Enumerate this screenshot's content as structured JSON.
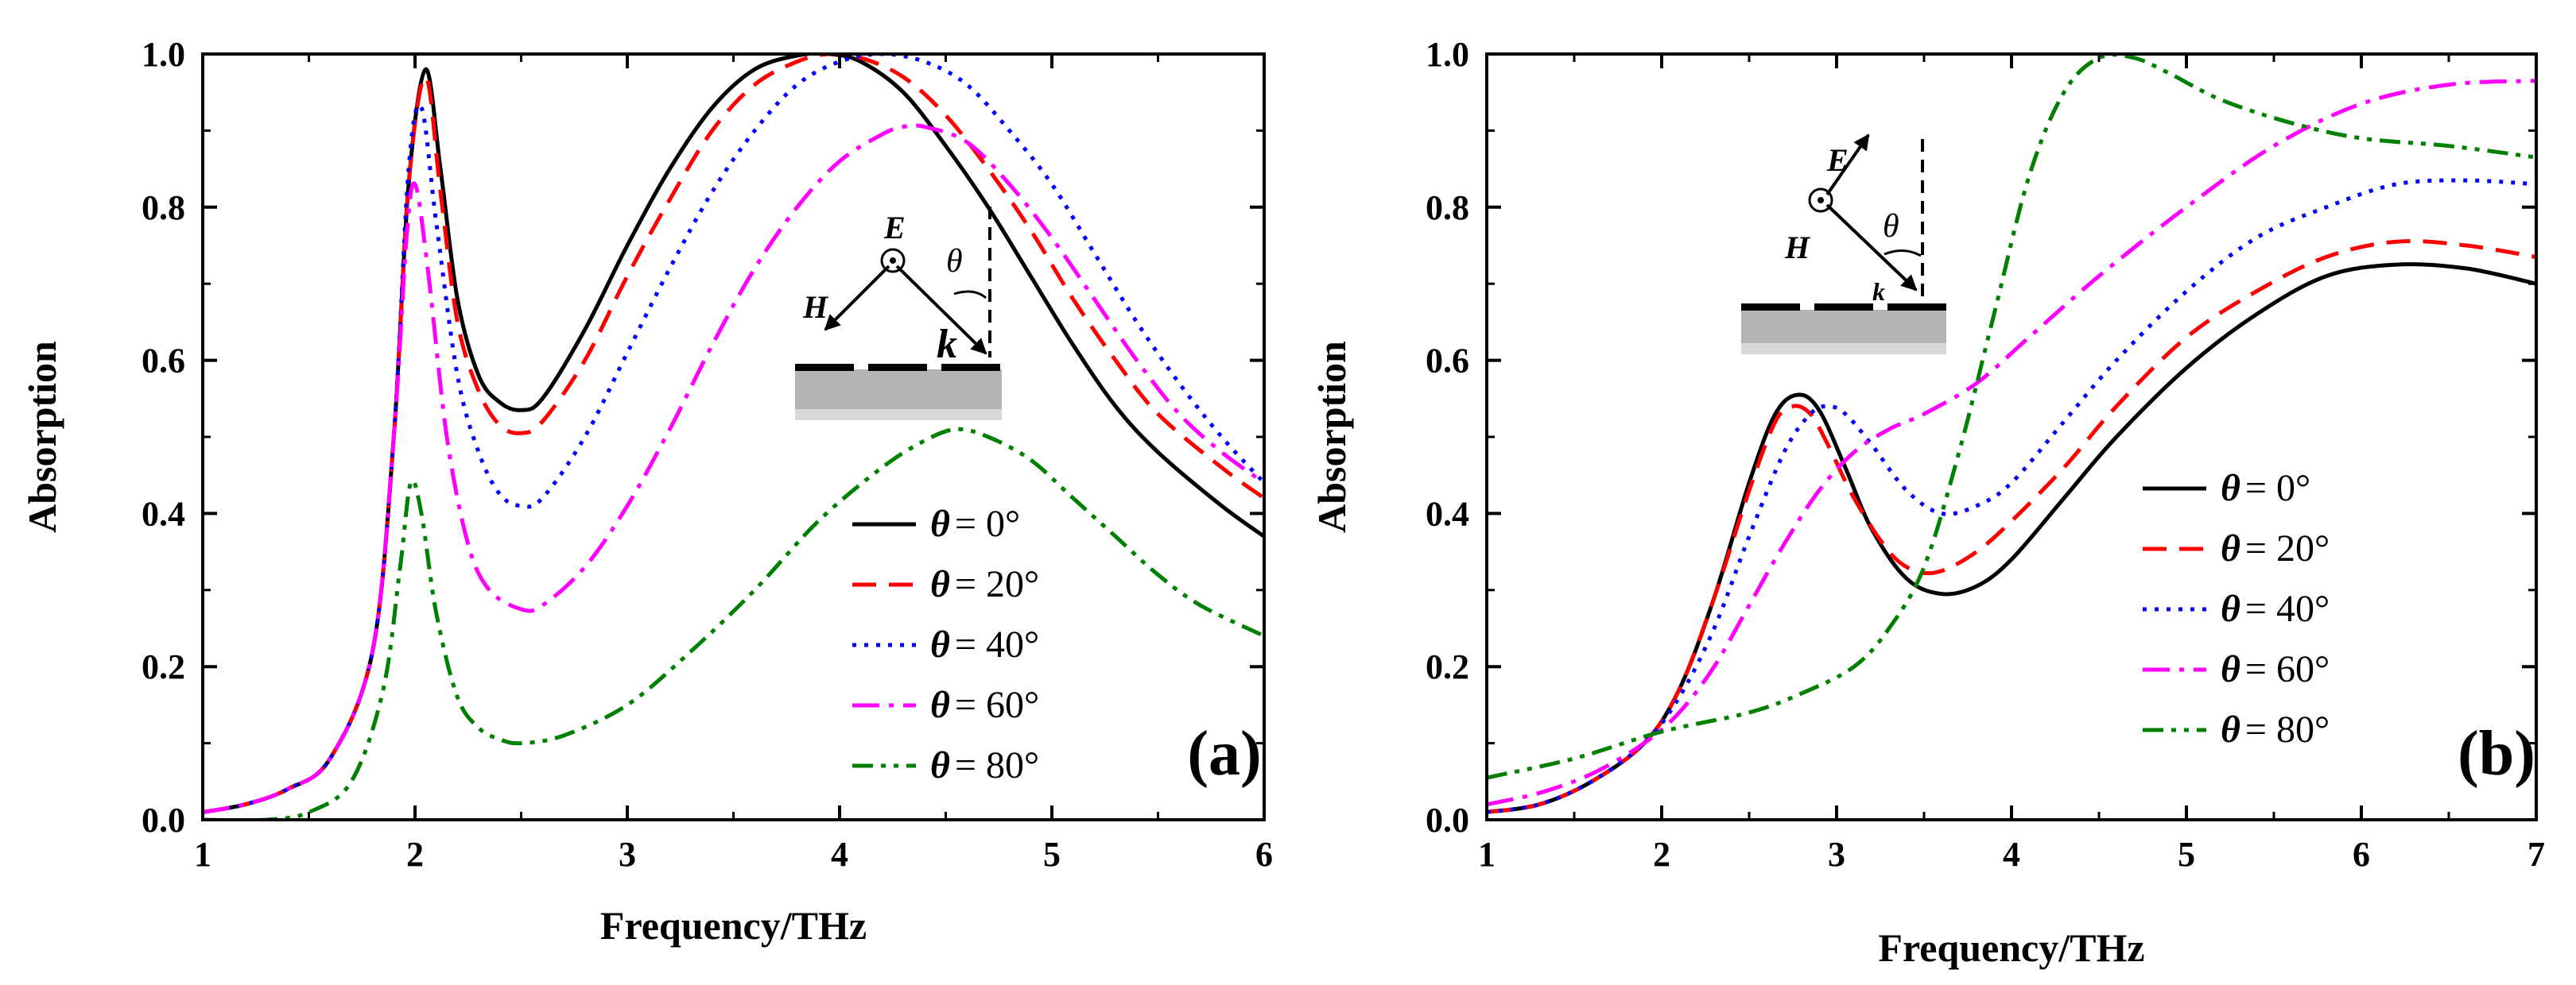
{
  "chart_data": [
    {
      "type": "line",
      "panel_label": "(a)",
      "xlabel": "Frequency/THz",
      "ylabel": "Absorption",
      "xlim": [
        1,
        6
      ],
      "ylim": [
        0,
        1
      ],
      "xticks": [
        "1",
        "2",
        "3",
        "4",
        "5",
        "6"
      ],
      "yticks": [
        "0.0",
        "0.2",
        "0.4",
        "0.6",
        "0.8",
        "1.0"
      ],
      "legend_position": "lower-right",
      "inset_labels": {
        "E": "E",
        "H": "H",
        "k": "k",
        "theta": "θ"
      },
      "series": [
        {
          "name": "θ = 0°",
          "theta": "θ",
          "value": "= 0°",
          "color": "#000000",
          "dash": "solid",
          "x": [
            1.0,
            1.2,
            1.4,
            1.6,
            1.8,
            1.9,
            1.97,
            2.05,
            2.12,
            2.2,
            2.3,
            2.4,
            2.5,
            2.6,
            2.8,
            3.0,
            3.2,
            3.4,
            3.6,
            3.8,
            3.95,
            4.1,
            4.3,
            4.5,
            4.7,
            4.9,
            5.1,
            5.3,
            5.5,
            5.8,
            6.0
          ],
          "y": [
            0.01,
            0.02,
            0.04,
            0.08,
            0.22,
            0.5,
            0.83,
            0.98,
            0.85,
            0.68,
            0.58,
            0.545,
            0.535,
            0.55,
            0.64,
            0.75,
            0.85,
            0.93,
            0.98,
            0.998,
            1.0,
            0.99,
            0.95,
            0.88,
            0.8,
            0.71,
            0.62,
            0.54,
            0.48,
            0.41,
            0.37
          ]
        },
        {
          "name": "θ = 20°",
          "theta": "θ",
          "value": "= 20°",
          "color": "#ff0000",
          "dash": "dashed",
          "x": [
            1.0,
            1.2,
            1.4,
            1.6,
            1.8,
            1.9,
            1.97,
            2.05,
            2.12,
            2.2,
            2.3,
            2.4,
            2.5,
            2.6,
            2.8,
            3.0,
            3.2,
            3.4,
            3.6,
            3.8,
            3.95,
            4.1,
            4.3,
            4.5,
            4.7,
            4.9,
            5.1,
            5.3,
            5.5,
            5.8,
            6.0
          ],
          "y": [
            0.01,
            0.02,
            0.04,
            0.08,
            0.22,
            0.5,
            0.83,
            0.97,
            0.82,
            0.65,
            0.56,
            0.515,
            0.505,
            0.52,
            0.6,
            0.71,
            0.81,
            0.9,
            0.96,
            0.99,
            1.0,
            0.995,
            0.97,
            0.92,
            0.85,
            0.77,
            0.68,
            0.6,
            0.53,
            0.46,
            0.42
          ]
        },
        {
          "name": "θ = 40°",
          "theta": "θ",
          "value": "= 40°",
          "color": "#0000ff",
          "dash": "dotted",
          "x": [
            1.0,
            1.2,
            1.4,
            1.6,
            1.8,
            1.9,
            1.97,
            2.03,
            2.1,
            2.2,
            2.3,
            2.4,
            2.5,
            2.6,
            2.8,
            3.0,
            3.2,
            3.4,
            3.6,
            3.8,
            4.0,
            4.2,
            4.4,
            4.6,
            4.8,
            5.0,
            5.2,
            5.4,
            5.6,
            5.8,
            6.0
          ],
          "y": [
            0.01,
            0.02,
            0.04,
            0.08,
            0.22,
            0.5,
            0.85,
            0.93,
            0.78,
            0.58,
            0.48,
            0.425,
            0.41,
            0.42,
            0.5,
            0.61,
            0.72,
            0.82,
            0.9,
            0.96,
            0.99,
            1.0,
            0.99,
            0.96,
            0.9,
            0.83,
            0.74,
            0.65,
            0.57,
            0.5,
            0.44
          ]
        },
        {
          "name": "θ = 60°",
          "theta": "θ",
          "value": "= 60°",
          "color": "#ff00ff",
          "dash": "dashdot",
          "x": [
            1.0,
            1.2,
            1.4,
            1.6,
            1.8,
            1.9,
            1.96,
            2.0,
            2.06,
            2.15,
            2.25,
            2.35,
            2.5,
            2.6,
            2.8,
            3.0,
            3.2,
            3.4,
            3.6,
            3.8,
            4.0,
            4.2,
            4.3,
            4.4,
            4.6,
            4.8,
            5.0,
            5.2,
            5.4,
            5.6,
            5.8,
            6.0
          ],
          "y": [
            0.01,
            0.02,
            0.04,
            0.08,
            0.22,
            0.5,
            0.76,
            0.83,
            0.72,
            0.5,
            0.36,
            0.3,
            0.275,
            0.28,
            0.33,
            0.41,
            0.51,
            0.62,
            0.72,
            0.8,
            0.86,
            0.895,
            0.905,
            0.905,
            0.885,
            0.83,
            0.76,
            0.68,
            0.6,
            0.53,
            0.48,
            0.44
          ]
        },
        {
          "name": "θ = 80°",
          "theta": "θ",
          "value": "= 80°",
          "color": "#008000",
          "dash": "dashdotdot",
          "x": [
            1.0,
            1.3,
            1.5,
            1.7,
            1.85,
            1.93,
            1.98,
            2.03,
            2.1,
            2.2,
            2.3,
            2.4,
            2.5,
            2.7,
            3.0,
            3.3,
            3.6,
            3.9,
            4.2,
            4.4,
            4.55,
            4.7,
            4.9,
            5.1,
            5.3,
            5.5,
            5.7,
            6.0
          ],
          "y": [
            0.0,
            0.0,
            0.01,
            0.05,
            0.17,
            0.33,
            0.44,
            0.4,
            0.27,
            0.16,
            0.12,
            0.105,
            0.1,
            0.11,
            0.15,
            0.22,
            0.3,
            0.39,
            0.46,
            0.495,
            0.51,
            0.5,
            0.47,
            0.42,
            0.37,
            0.32,
            0.28,
            0.24
          ]
        }
      ]
    },
    {
      "type": "line",
      "panel_label": "(b)",
      "xlabel": "Frequency/THz",
      "ylabel": "Absorption",
      "xlim": [
        1,
        7
      ],
      "ylim": [
        0,
        1
      ],
      "xticks": [
        "1",
        "2",
        "3",
        "4",
        "5",
        "6",
        "7"
      ],
      "yticks": [
        "0.0",
        "0.2",
        "0.4",
        "0.6",
        "0.8",
        "1.0"
      ],
      "legend_position": "lower-right",
      "inset_labels": {
        "E": "E",
        "H": "H",
        "k": "k",
        "theta": "θ"
      },
      "series": [
        {
          "name": "θ = 0°",
          "theta": "θ",
          "value": "= 0°",
          "color": "#000000",
          "dash": "solid",
          "x": [
            1.0,
            1.3,
            1.6,
            1.9,
            2.1,
            2.3,
            2.5,
            2.65,
            2.78,
            2.9,
            3.05,
            3.2,
            3.4,
            3.6,
            3.8,
            4.0,
            4.3,
            4.6,
            5.0,
            5.4,
            5.8,
            6.2,
            6.6,
            7.0
          ],
          "y": [
            0.01,
            0.02,
            0.05,
            0.1,
            0.17,
            0.29,
            0.44,
            0.53,
            0.555,
            0.535,
            0.46,
            0.38,
            0.315,
            0.295,
            0.305,
            0.34,
            0.42,
            0.5,
            0.59,
            0.66,
            0.71,
            0.725,
            0.72,
            0.7
          ]
        },
        {
          "name": "θ = 20°",
          "theta": "θ",
          "value": "= 20°",
          "color": "#ff0000",
          "dash": "dashed",
          "x": [
            1.0,
            1.3,
            1.6,
            1.9,
            2.1,
            2.3,
            2.5,
            2.65,
            2.75,
            2.85,
            2.95,
            3.1,
            3.3,
            3.45,
            3.6,
            3.8,
            4.0,
            4.3,
            4.6,
            5.0,
            5.4,
            5.8,
            6.2,
            6.6,
            7.0
          ],
          "y": [
            0.01,
            0.02,
            0.05,
            0.1,
            0.17,
            0.29,
            0.43,
            0.52,
            0.54,
            0.53,
            0.49,
            0.42,
            0.35,
            0.325,
            0.325,
            0.35,
            0.39,
            0.46,
            0.54,
            0.63,
            0.69,
            0.735,
            0.755,
            0.75,
            0.735
          ]
        },
        {
          "name": "θ = 40°",
          "theta": "θ",
          "value": "= 40°",
          "color": "#0000ff",
          "dash": "dotted",
          "x": [
            1.0,
            1.3,
            1.6,
            1.9,
            2.1,
            2.3,
            2.5,
            2.7,
            2.85,
            2.95,
            3.05,
            3.2,
            3.4,
            3.6,
            3.8,
            4.0,
            4.3,
            4.6,
            5.0,
            5.4,
            5.8,
            6.2,
            6.6,
            7.0
          ],
          "y": [
            0.01,
            0.02,
            0.05,
            0.1,
            0.16,
            0.25,
            0.37,
            0.48,
            0.53,
            0.54,
            0.53,
            0.49,
            0.43,
            0.4,
            0.41,
            0.44,
            0.52,
            0.6,
            0.69,
            0.76,
            0.8,
            0.83,
            0.835,
            0.83
          ]
        },
        {
          "name": "θ = 60°",
          "theta": "θ",
          "value": "= 60°",
          "color": "#ff00ff",
          "dash": "dashdot",
          "x": [
            1.0,
            1.3,
            1.6,
            1.9,
            2.1,
            2.3,
            2.5,
            2.7,
            2.9,
            3.1,
            3.3,
            3.5,
            3.8,
            4.1,
            4.5,
            5.0,
            5.5,
            6.0,
            6.5,
            7.0
          ],
          "y": [
            0.02,
            0.035,
            0.06,
            0.1,
            0.14,
            0.2,
            0.28,
            0.36,
            0.43,
            0.48,
            0.51,
            0.53,
            0.57,
            0.63,
            0.71,
            0.8,
            0.88,
            0.935,
            0.96,
            0.965
          ]
        },
        {
          "name": "θ = 80°",
          "theta": "θ",
          "value": "= 80°",
          "color": "#008000",
          "dash": "dashdotdot",
          "x": [
            1.0,
            1.5,
            2.0,
            2.5,
            2.8,
            3.1,
            3.3,
            3.5,
            3.7,
            3.9,
            4.1,
            4.3,
            4.5,
            4.7,
            4.9,
            5.2,
            5.6,
            6.0,
            6.5,
            7.0
          ],
          "y": [
            0.055,
            0.08,
            0.115,
            0.14,
            0.165,
            0.2,
            0.25,
            0.33,
            0.48,
            0.66,
            0.84,
            0.95,
            0.995,
            0.995,
            0.975,
            0.94,
            0.91,
            0.89,
            0.88,
            0.865
          ]
        }
      ]
    }
  ]
}
